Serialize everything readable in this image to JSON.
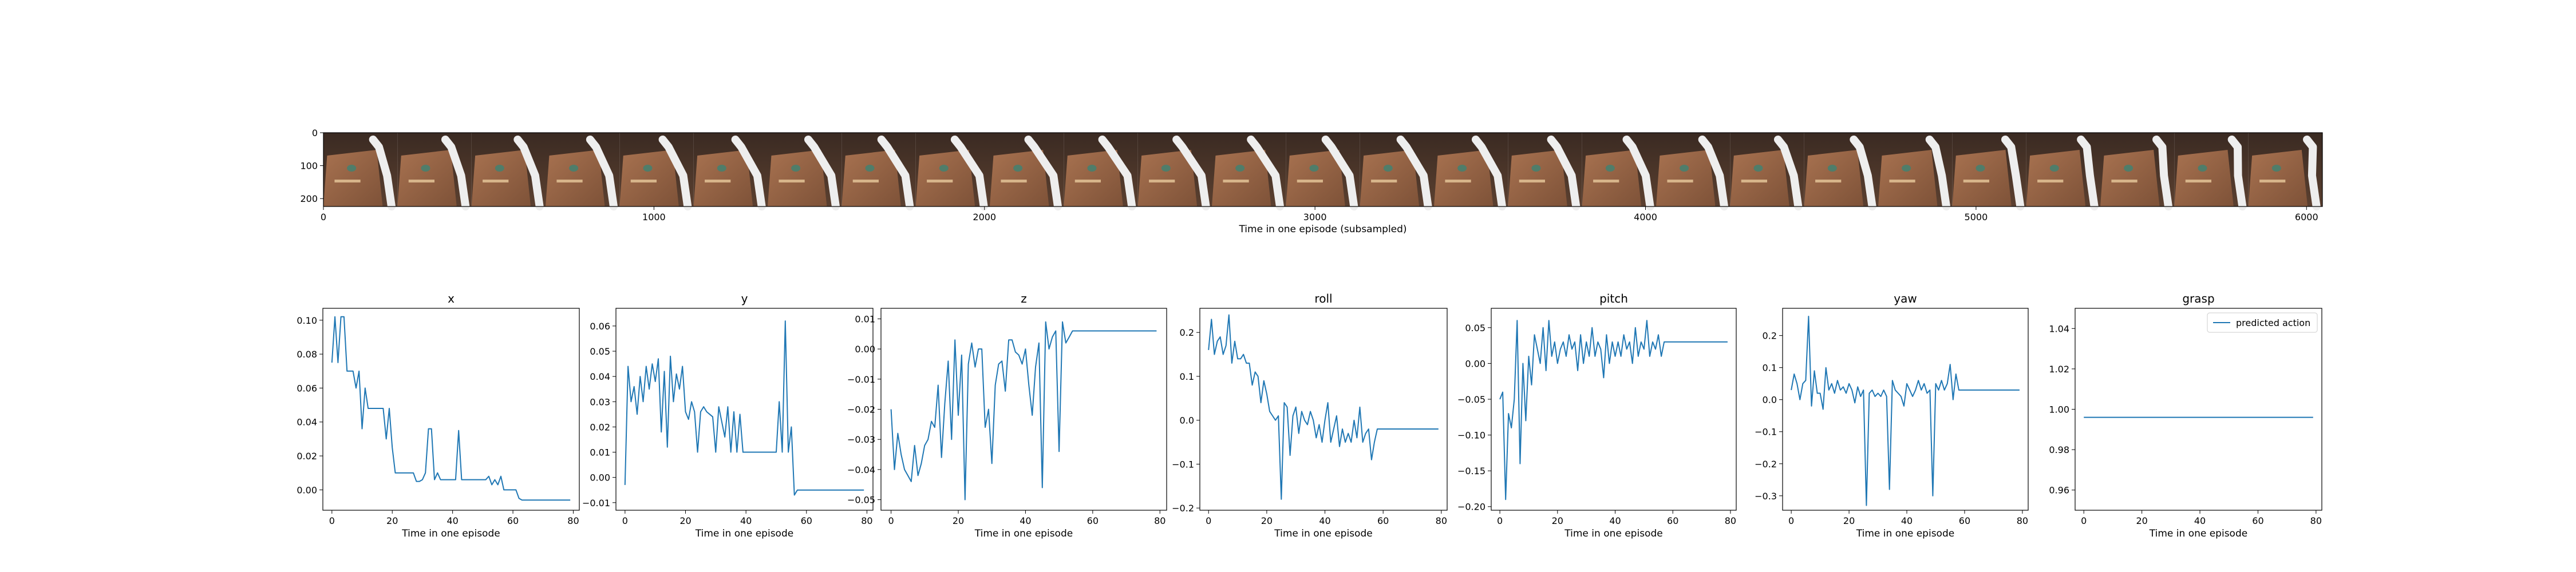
{
  "colors": {
    "line": "#1f77b4",
    "axes": "#000000",
    "background": "#ffffff"
  },
  "filmstrip": {
    "type": "image",
    "xlabel": "Time in one episode (subsampled)",
    "x_ticks": [
      0,
      1000,
      2000,
      3000,
      4000,
      5000,
      6000
    ],
    "y_ticks": [
      0,
      100,
      200
    ],
    "frames": 27,
    "xlim": [
      0,
      6048
    ],
    "ylim": [
      224,
      0
    ]
  },
  "chart_data": [
    {
      "type": "line",
      "title": "x",
      "xlabel": "Time in one episode",
      "xlim": [
        -3,
        82
      ],
      "ylim": [
        -0.012,
        0.107
      ],
      "x_ticks": [
        0,
        20,
        40,
        60,
        80
      ],
      "y_ticks": [
        0.0,
        0.02,
        0.04,
        0.06,
        0.08,
        0.1
      ],
      "y_tick_labels": [
        "0.00",
        "0.02",
        "0.04",
        "0.06",
        "0.08",
        "0.10"
      ],
      "x": [
        0,
        1,
        2,
        3,
        4,
        5,
        6,
        7,
        8,
        9,
        10,
        11,
        12,
        13,
        14,
        15,
        16,
        17,
        18,
        19,
        20,
        21,
        22,
        23,
        24,
        25,
        26,
        27,
        28,
        29,
        30,
        31,
        32,
        33,
        34,
        35,
        36,
        37,
        38,
        39,
        40,
        41,
        42,
        43,
        44,
        45,
        46,
        47,
        48,
        49,
        50,
        51,
        52,
        53,
        54,
        55,
        56,
        57,
        58,
        59,
        60,
        61,
        62,
        63,
        64,
        65,
        66,
        67,
        68,
        69,
        70,
        71,
        72,
        73,
        74,
        75,
        76,
        77,
        78,
        79
      ],
      "values": [
        0.075,
        0.102,
        0.075,
        0.102,
        0.102,
        0.07,
        0.07,
        0.07,
        0.06,
        0.07,
        0.036,
        0.06,
        0.048,
        0.048,
        0.048,
        0.048,
        0.048,
        0.048,
        0.03,
        0.048,
        0.025,
        0.01,
        0.01,
        0.01,
        0.01,
        0.01,
        0.01,
        0.01,
        0.005,
        0.005,
        0.006,
        0.01,
        0.036,
        0.036,
        0.006,
        0.01,
        0.006,
        0.006,
        0.006,
        0.006,
        0.006,
        0.006,
        0.035,
        0.006,
        0.006,
        0.006,
        0.006,
        0.006,
        0.006,
        0.006,
        0.006,
        0.006,
        0.008,
        0.003,
        0.006,
        0.003,
        0.008,
        0.0,
        0.0,
        0.0,
        0.0,
        0.0,
        -0.005,
        -0.006,
        -0.006,
        -0.006,
        -0.006,
        -0.006,
        -0.006,
        -0.006,
        -0.006,
        -0.006,
        -0.006,
        -0.006,
        -0.006,
        -0.006,
        -0.006,
        -0.006,
        -0.006,
        -0.006
      ]
    },
    {
      "type": "line",
      "title": "y",
      "xlabel": "Time in one episode",
      "xlim": [
        -3,
        82
      ],
      "ylim": [
        -0.013,
        0.067
      ],
      "x_ticks": [
        0,
        20,
        40,
        60,
        80
      ],
      "y_ticks": [
        -0.01,
        0.0,
        0.01,
        0.02,
        0.03,
        0.04,
        0.05,
        0.06
      ],
      "y_tick_labels": [
        "−0.01",
        "0.00",
        "0.01",
        "0.02",
        "0.03",
        "0.04",
        "0.05",
        "0.06"
      ],
      "x": [
        0,
        1,
        2,
        3,
        4,
        5,
        6,
        7,
        8,
        9,
        10,
        11,
        12,
        13,
        14,
        15,
        16,
        17,
        18,
        19,
        20,
        21,
        22,
        23,
        24,
        25,
        26,
        27,
        28,
        29,
        30,
        31,
        32,
        33,
        34,
        35,
        36,
        37,
        38,
        39,
        40,
        41,
        42,
        43,
        44,
        45,
        46,
        47,
        48,
        49,
        50,
        51,
        52,
        53,
        54,
        55,
        56,
        57,
        58,
        59,
        60,
        61,
        62,
        63,
        64,
        65,
        66,
        67,
        68,
        69,
        70,
        71,
        72,
        73,
        74,
        75,
        76,
        77,
        78,
        79
      ],
      "values": [
        -0.003,
        0.044,
        0.03,
        0.036,
        0.025,
        0.04,
        0.03,
        0.044,
        0.035,
        0.045,
        0.038,
        0.047,
        0.018,
        0.042,
        0.012,
        0.048,
        0.03,
        0.041,
        0.035,
        0.044,
        0.026,
        0.023,
        0.03,
        0.026,
        0.01,
        0.026,
        0.028,
        0.026,
        0.025,
        0.024,
        0.01,
        0.028,
        0.022,
        0.016,
        0.028,
        0.01,
        0.026,
        0.01,
        0.025,
        0.01,
        0.01,
        0.01,
        0.01,
        0.01,
        0.01,
        0.01,
        0.01,
        0.01,
        0.01,
        0.01,
        0.01,
        0.03,
        0.01,
        0.062,
        0.01,
        0.02,
        -0.007,
        -0.005,
        -0.005,
        -0.005,
        -0.005,
        -0.005,
        -0.005,
        -0.005,
        -0.005,
        -0.005,
        -0.005,
        -0.005,
        -0.005,
        -0.005,
        -0.005,
        -0.005,
        -0.005,
        -0.005,
        -0.005,
        -0.005,
        -0.005,
        -0.005,
        -0.005,
        -0.005
      ]
    },
    {
      "type": "line",
      "title": "z",
      "xlabel": "Time in one episode",
      "xlim": [
        -3,
        82
      ],
      "ylim": [
        -0.0535,
        0.0135
      ],
      "x_ticks": [
        0,
        20,
        40,
        60,
        80
      ],
      "y_ticks": [
        -0.05,
        -0.04,
        -0.03,
        -0.02,
        -0.01,
        0.0,
        0.01
      ],
      "y_tick_labels": [
        "−0.05",
        "−0.04",
        "−0.03",
        "−0.02",
        "−0.01",
        "0.00",
        "0.01"
      ],
      "x": [
        0,
        1,
        2,
        3,
        4,
        5,
        6,
        7,
        8,
        9,
        10,
        11,
        12,
        13,
        14,
        15,
        16,
        17,
        18,
        19,
        20,
        21,
        22,
        23,
        24,
        25,
        26,
        27,
        28,
        29,
        30,
        31,
        32,
        33,
        34,
        35,
        36,
        37,
        38,
        39,
        40,
        41,
        42,
        43,
        44,
        45,
        46,
        47,
        48,
        49,
        50,
        51,
        52,
        53,
        54,
        55,
        56,
        57,
        58,
        59,
        60,
        61,
        62,
        63,
        64,
        65,
        66,
        67,
        68,
        69,
        70,
        71,
        72,
        73,
        74,
        75,
        76,
        77,
        78,
        79
      ],
      "values": [
        -0.02,
        -0.04,
        -0.028,
        -0.035,
        -0.04,
        -0.042,
        -0.044,
        -0.032,
        -0.042,
        -0.038,
        -0.032,
        -0.03,
        -0.024,
        -0.026,
        -0.012,
        -0.036,
        -0.018,
        -0.004,
        -0.03,
        0.003,
        -0.022,
        -0.002,
        -0.05,
        -0.005,
        0.002,
        -0.006,
        0.0,
        0.0,
        -0.026,
        -0.02,
        -0.038,
        -0.012,
        -0.005,
        -0.004,
        -0.014,
        0.003,
        0.003,
        -0.001,
        -0.002,
        -0.005,
        0.0,
        -0.012,
        -0.022,
        -0.006,
        0.002,
        -0.046,
        0.009,
        0.0,
        0.004,
        0.006,
        -0.034,
        0.009,
        0.002,
        0.004,
        0.006,
        0.006,
        0.006,
        0.006,
        0.006,
        0.006,
        0.006,
        0.006,
        0.006,
        0.006,
        0.006,
        0.006,
        0.006,
        0.006,
        0.006,
        0.006,
        0.006,
        0.006,
        0.006,
        0.006,
        0.006,
        0.006,
        0.006,
        0.006,
        0.006,
        0.006
      ]
    },
    {
      "type": "line",
      "title": "roll",
      "xlabel": "Time in one episode",
      "xlim": [
        -3,
        82
      ],
      "ylim": [
        -0.205,
        0.255
      ],
      "x_ticks": [
        0,
        20,
        40,
        60,
        80
      ],
      "y_ticks": [
        -0.2,
        -0.1,
        0.0,
        0.1,
        0.2
      ],
      "y_tick_labels": [
        "−0.2",
        "−0.1",
        "0.0",
        "0.1",
        "0.2"
      ],
      "x": [
        0,
        1,
        2,
        3,
        4,
        5,
        6,
        7,
        8,
        9,
        10,
        11,
        12,
        13,
        14,
        15,
        16,
        17,
        18,
        19,
        20,
        21,
        22,
        23,
        24,
        25,
        26,
        27,
        28,
        29,
        30,
        31,
        32,
        33,
        34,
        35,
        36,
        37,
        38,
        39,
        40,
        41,
        42,
        43,
        44,
        45,
        46,
        47,
        48,
        49,
        50,
        51,
        52,
        53,
        54,
        55,
        56,
        57,
        58,
        59,
        60,
        61,
        62,
        63,
        64,
        65,
        66,
        67,
        68,
        69,
        70,
        71,
        72,
        73,
        74,
        75,
        76,
        77,
        78,
        79
      ],
      "values": [
        0.16,
        0.23,
        0.15,
        0.18,
        0.19,
        0.15,
        0.17,
        0.24,
        0.13,
        0.18,
        0.14,
        0.14,
        0.15,
        0.13,
        0.13,
        0.08,
        0.11,
        0.1,
        0.04,
        0.09,
        0.06,
        0.02,
        0.01,
        0.0,
        0.01,
        -0.18,
        0.04,
        0.03,
        -0.08,
        0.01,
        0.03,
        -0.03,
        0.02,
        0.0,
        -0.01,
        0.02,
        0.0,
        -0.04,
        -0.01,
        -0.05,
        0.0,
        0.04,
        -0.05,
        -0.02,
        0.01,
        -0.06,
        -0.02,
        -0.05,
        -0.03,
        -0.05,
        0.0,
        -0.04,
        0.03,
        -0.05,
        -0.03,
        -0.02,
        -0.09,
        -0.05,
        -0.02,
        -0.02,
        -0.02,
        -0.02,
        -0.02,
        -0.02,
        -0.02,
        -0.02,
        -0.02,
        -0.02,
        -0.02,
        -0.02,
        -0.02,
        -0.02,
        -0.02,
        -0.02,
        -0.02,
        -0.02,
        -0.02,
        -0.02,
        -0.02,
        -0.02
      ]
    },
    {
      "type": "line",
      "title": "pitch",
      "xlabel": "Time in one episode",
      "xlim": [
        -3,
        82
      ],
      "ylim": [
        -0.205,
        0.077
      ],
      "x_ticks": [
        0,
        20,
        40,
        60,
        80
      ],
      "y_ticks": [
        -0.2,
        -0.15,
        -0.1,
        -0.05,
        0.0,
        0.05
      ],
      "y_tick_labels": [
        "−0.20",
        "−0.15",
        "−0.10",
        "−0.05",
        "0.00",
        "0.05"
      ],
      "x": [
        0,
        1,
        2,
        3,
        4,
        5,
        6,
        7,
        8,
        9,
        10,
        11,
        12,
        13,
        14,
        15,
        16,
        17,
        18,
        19,
        20,
        21,
        22,
        23,
        24,
        25,
        26,
        27,
        28,
        29,
        30,
        31,
        32,
        33,
        34,
        35,
        36,
        37,
        38,
        39,
        40,
        41,
        42,
        43,
        44,
        45,
        46,
        47,
        48,
        49,
        50,
        51,
        52,
        53,
        54,
        55,
        56,
        57,
        58,
        59,
        60,
        61,
        62,
        63,
        64,
        65,
        66,
        67,
        68,
        69,
        70,
        71,
        72,
        73,
        74,
        75,
        76,
        77,
        78,
        79
      ],
      "values": [
        -0.05,
        -0.04,
        -0.19,
        -0.07,
        -0.09,
        -0.05,
        0.06,
        -0.14,
        0.0,
        -0.08,
        0.01,
        -0.03,
        0.04,
        0.02,
        0.0,
        0.05,
        -0.01,
        0.06,
        0.01,
        0.03,
        0.0,
        0.02,
        0.03,
        0.01,
        0.04,
        0.02,
        0.03,
        -0.01,
        0.04,
        0.0,
        0.03,
        0.01,
        0.05,
        0.01,
        0.03,
        0.02,
        -0.02,
        0.04,
        0.0,
        0.03,
        0.01,
        0.03,
        0.01,
        0.04,
        0.02,
        0.03,
        0.0,
        0.05,
        0.01,
        0.03,
        0.02,
        0.06,
        0.01,
        0.03,
        0.02,
        0.04,
        0.01,
        0.03,
        0.03,
        0.03,
        0.03,
        0.03,
        0.03,
        0.03,
        0.03,
        0.03,
        0.03,
        0.03,
        0.03,
        0.03,
        0.03,
        0.03,
        0.03,
        0.03,
        0.03,
        0.03,
        0.03,
        0.03,
        0.03,
        0.03
      ]
    },
    {
      "type": "line",
      "title": "yaw",
      "xlabel": "Time in one episode",
      "xlim": [
        -3,
        82
      ],
      "ylim": [
        -0.345,
        0.285
      ],
      "x_ticks": [
        0,
        20,
        40,
        60,
        80
      ],
      "y_ticks": [
        -0.3,
        -0.2,
        -0.1,
        0.0,
        0.1,
        0.2
      ],
      "y_tick_labels": [
        "−0.3",
        "−0.2",
        "−0.1",
        "0.0",
        "0.1",
        "0.2"
      ],
      "x": [
        0,
        1,
        2,
        3,
        4,
        5,
        6,
        7,
        8,
        9,
        10,
        11,
        12,
        13,
        14,
        15,
        16,
        17,
        18,
        19,
        20,
        21,
        22,
        23,
        24,
        25,
        26,
        27,
        28,
        29,
        30,
        31,
        32,
        33,
        34,
        35,
        36,
        37,
        38,
        39,
        40,
        41,
        42,
        43,
        44,
        45,
        46,
        47,
        48,
        49,
        50,
        51,
        52,
        53,
        54,
        55,
        56,
        57,
        58,
        59,
        60,
        61,
        62,
        63,
        64,
        65,
        66,
        67,
        68,
        69,
        70,
        71,
        72,
        73,
        74,
        75,
        76,
        77,
        78,
        79
      ],
      "values": [
        0.03,
        0.08,
        0.05,
        0.0,
        0.05,
        0.06,
        0.26,
        -0.02,
        0.09,
        0.02,
        0.02,
        -0.03,
        0.1,
        0.03,
        0.05,
        0.02,
        0.06,
        0.03,
        0.04,
        0.02,
        0.05,
        0.03,
        -0.01,
        0.04,
        0.01,
        0.03,
        -0.33,
        0.02,
        0.03,
        0.01,
        0.02,
        0.01,
        0.03,
        0.01,
        -0.28,
        0.06,
        0.03,
        0.02,
        0.01,
        -0.02,
        0.05,
        0.03,
        0.01,
        0.03,
        0.06,
        0.03,
        0.05,
        0.02,
        0.03,
        -0.3,
        0.05,
        0.03,
        0.06,
        0.03,
        0.05,
        0.11,
        0.0,
        0.08,
        0.03,
        0.03,
        0.03,
        0.03,
        0.03,
        0.03,
        0.03,
        0.03,
        0.03,
        0.03,
        0.03,
        0.03,
        0.03,
        0.03,
        0.03,
        0.03,
        0.03,
        0.03,
        0.03,
        0.03,
        0.03,
        0.03
      ]
    },
    {
      "type": "line",
      "title": "grasp",
      "xlabel": "Time in one episode",
      "xlim": [
        -3,
        82
      ],
      "ylim": [
        0.95,
        1.05
      ],
      "x_ticks": [
        0,
        20,
        40,
        60,
        80
      ],
      "y_ticks": [
        0.96,
        0.98,
        1.0,
        1.02,
        1.04
      ],
      "y_tick_labels": [
        "0.96",
        "0.98",
        "1.00",
        "1.02",
        "1.04"
      ],
      "x": [
        0,
        79
      ],
      "values": [
        0.996,
        0.996
      ],
      "legend": {
        "label": "predicted action",
        "position": "upper right"
      }
    }
  ]
}
